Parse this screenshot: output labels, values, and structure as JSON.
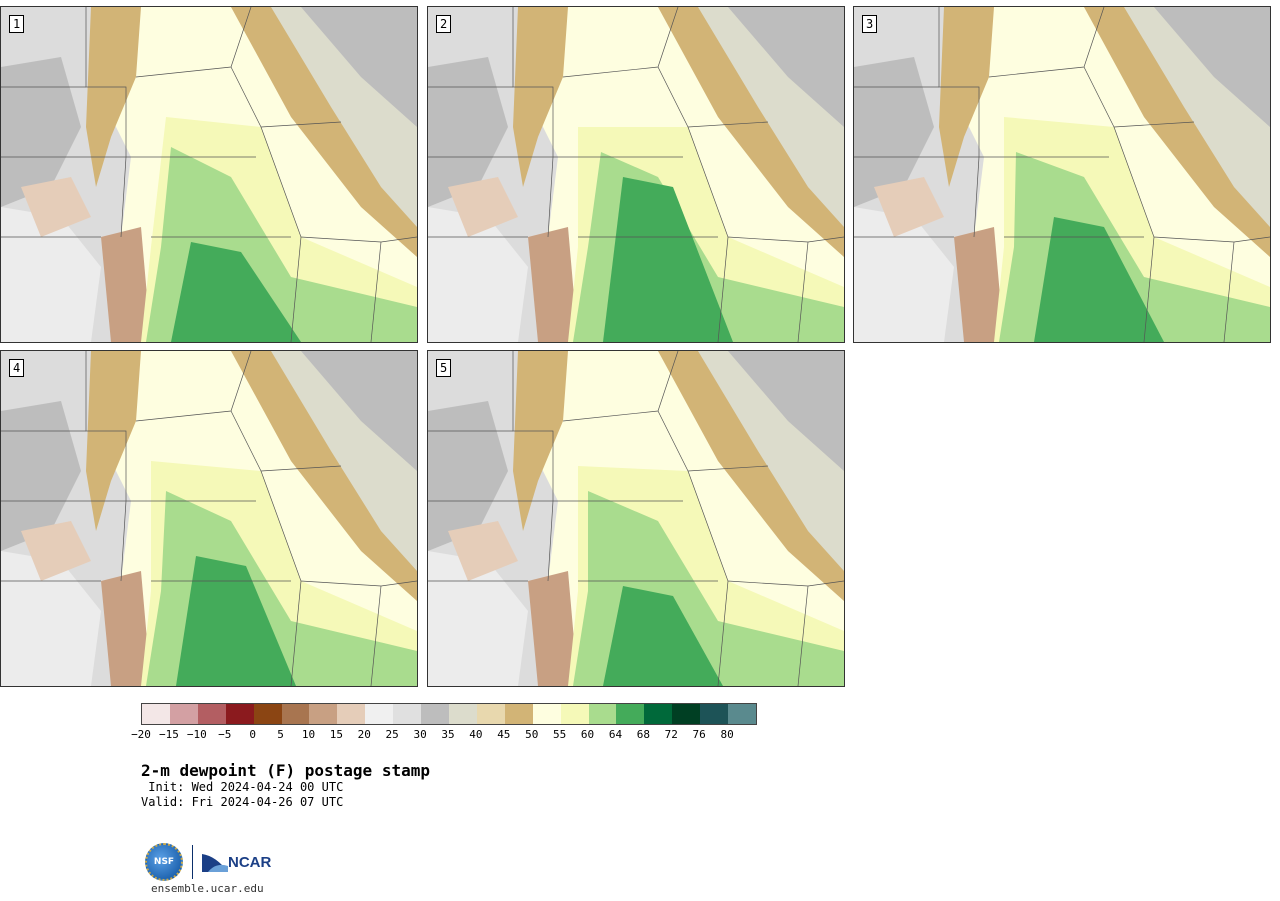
{
  "panels": [
    {
      "label": "1"
    },
    {
      "label": "2"
    },
    {
      "label": "3"
    },
    {
      "label": "4"
    },
    {
      "label": "5"
    }
  ],
  "colorbar": {
    "colors": [
      "#f3e7e7",
      "#d3a0a3",
      "#b35e62",
      "#8b1a1e",
      "#8b4513",
      "#a87550",
      "#c8a083",
      "#e5cdb9",
      "#f0f0f0",
      "#e0e0e0",
      "#bdbdbd",
      "#dcdccc",
      "#e8d8ae",
      "#d2b476",
      "#fefee0",
      "#f5f9b8",
      "#a9dc8e",
      "#44ab5a",
      "#00693a",
      "#003f23",
      "#1d5357",
      "#5a8a8e"
    ],
    "ticks": [
      "−20",
      "−15",
      "−10",
      "−5",
      "0",
      "5",
      "10",
      "15",
      "20",
      "25",
      "30",
      "35",
      "40",
      "45",
      "50",
      "55",
      "60",
      "64",
      "68",
      "72",
      "76",
      "80"
    ]
  },
  "title": "2-m dewpoint (F) postage stamp",
  "init": " Init: Wed 2024-04-24 00 UTC",
  "valid": "Valid: Fri 2024-04-26 07 UTC",
  "logo": {
    "nsf": "NSF",
    "ncar": "NCAR"
  },
  "site": "ensemble.ucar.edu"
}
